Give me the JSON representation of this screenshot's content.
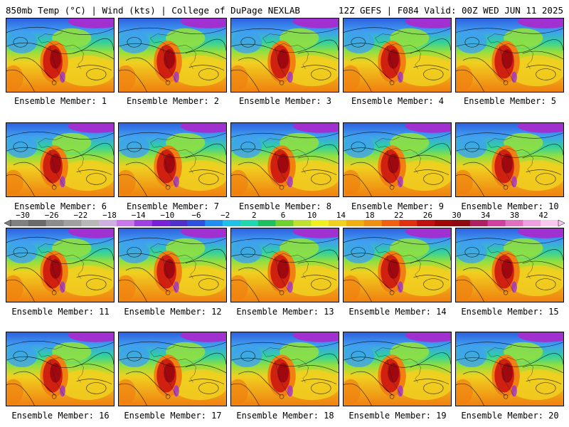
{
  "header": {
    "left": "850mb Temp (°C) | Wind (kts) | College of DuPage NEXLAB",
    "right": "12Z GEFS | F084 Valid: 00Z WED JUN 11 2025"
  },
  "members": [
    "Ensemble Member: 1",
    "Ensemble Member: 2",
    "Ensemble Member: 3",
    "Ensemble Member: 4",
    "Ensemble Member: 5",
    "Ensemble Member: 6",
    "Ensemble Member: 7",
    "Ensemble Member: 8",
    "Ensemble Member: 9",
    "Ensemble Member: 10",
    "Ensemble Member: 11",
    "Ensemble Member: 12",
    "Ensemble Member: 13",
    "Ensemble Member: 14",
    "Ensemble Member: 15",
    "Ensemble Member: 16",
    "Ensemble Member: 17",
    "Ensemble Member: 18",
    "Ensemble Member: 19",
    "Ensemble Member: 20"
  ],
  "colorbar": {
    "labels": [
      "−30",
      "−26",
      "−22",
      "−18",
      "−14",
      "−10",
      "−6",
      "−2",
      "2",
      "6",
      "10",
      "14",
      "18",
      "22",
      "26",
      "30",
      "34",
      "38",
      "42"
    ],
    "colors": [
      "#808080",
      "#6a6a6a",
      "#8c8c8c",
      "#a0a0a0",
      "#b8b8b8",
      "#d0b0e0",
      "#c878e8",
      "#a040e0",
      "#7a20d8",
      "#5030c8",
      "#3050e0",
      "#2090f0",
      "#20c0e8",
      "#20d8b0",
      "#20c060",
      "#70d030",
      "#c0e030",
      "#f0f020",
      "#f0d020",
      "#f0b010",
      "#f09010",
      "#f06010",
      "#e03010",
      "#c01010",
      "#a00808",
      "#900810",
      "#b02060",
      "#d040a0",
      "#e070c0",
      "#f0a0e0",
      "#f8c8f0"
    ]
  },
  "palette": {
    "ocean_north": "#2e60e0",
    "cold": "#40a0f0",
    "cool": "#30d0a0",
    "mild": "#90e040",
    "warm": "#f0d020",
    "hot": "#f08010",
    "heat": "#d02010",
    "extreme": "#a00810",
    "polar": "#a030d0"
  }
}
